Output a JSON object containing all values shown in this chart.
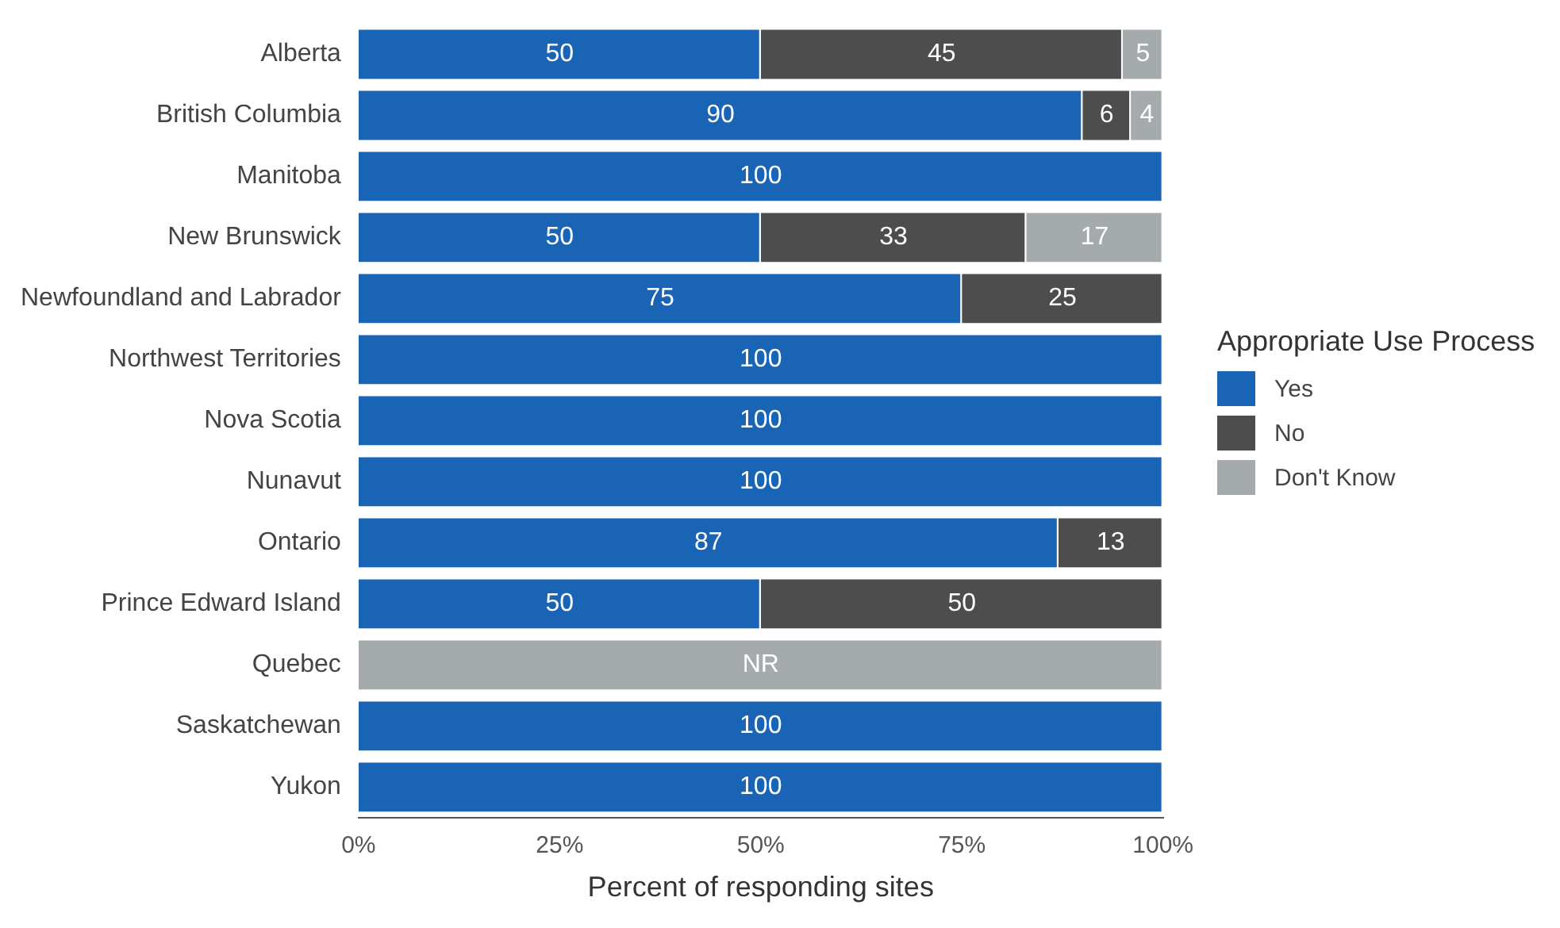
{
  "chart_data": {
    "type": "bar",
    "orientation": "horizontal",
    "stacked": true,
    "xlabel": "Percent of responding sites",
    "legend_title": "Appropriate Use Process",
    "legend": "right",
    "grid": false,
    "categories": [
      "Alberta",
      "British Columbia",
      "Manitoba",
      "New Brunswick",
      "Newfoundland and Labrador",
      "Northwest Territories",
      "Nova Scotia",
      "Nunavut",
      "Ontario",
      "Prince Edward Island",
      "Quebec",
      "Saskatchewan",
      "Yukon"
    ],
    "xlim": [
      0,
      100
    ],
    "xticks": [
      {
        "value": 0,
        "label": "0%"
      },
      {
        "value": 25,
        "label": "25%"
      },
      {
        "value": 50,
        "label": "50%"
      },
      {
        "value": 75,
        "label": "75%"
      },
      {
        "value": 100,
        "label": "100%"
      }
    ],
    "series": [
      {
        "name": "Yes",
        "color": "#1a64b5",
        "values": [
          50,
          90,
          100,
          50,
          75,
          100,
          100,
          100,
          87,
          50,
          null,
          100,
          100
        ],
        "value_labels": [
          "50",
          "90",
          "100",
          "50",
          "75",
          "100",
          "100",
          "100",
          "87",
          "50",
          null,
          "100",
          "100"
        ]
      },
      {
        "name": "No",
        "color": "#4d4d4d",
        "values": [
          45,
          6,
          null,
          33,
          25,
          null,
          null,
          null,
          13,
          50,
          null,
          null,
          null
        ],
        "value_labels": [
          "45",
          "6",
          null,
          "33",
          "25",
          null,
          null,
          null,
          "13",
          "50",
          null,
          null,
          null
        ]
      },
      {
        "name": "Don't Know",
        "color": "#a5aaad",
        "values": [
          5,
          4,
          null,
          17,
          null,
          null,
          null,
          null,
          null,
          null,
          null,
          null,
          null
        ],
        "value_labels": [
          "5",
          "4",
          null,
          "17",
          null,
          null,
          null,
          null,
          null,
          null,
          null,
          null,
          null
        ]
      },
      {
        "color": "#a5aaad",
        "values": [
          null,
          null,
          null,
          null,
          null,
          null,
          null,
          null,
          null,
          null,
          100,
          null,
          null
        ],
        "value_labels": [
          null,
          null,
          null,
          null,
          null,
          null,
          null,
          null,
          null,
          null,
          "NR",
          null,
          null
        ]
      }
    ]
  }
}
